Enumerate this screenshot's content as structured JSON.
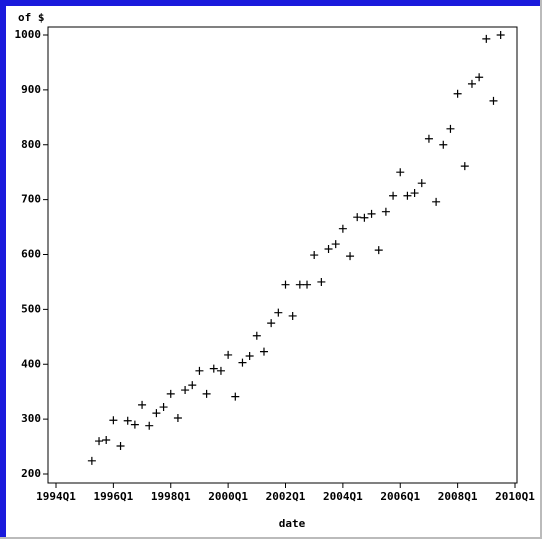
{
  "chart_data": {
    "type": "scatter",
    "ylabel": "of $",
    "xlabel": "date",
    "x": [
      1995.25,
      1995.5,
      1995.75,
      1996,
      1996.25,
      1996.5,
      1996.75,
      1997,
      1997.25,
      1997.5,
      1997.75,
      1998,
      1998.25,
      1998.5,
      1998.75,
      1999,
      1999.25,
      1999.5,
      1999.75,
      2000,
      2000.25,
      2000.5,
      2000.75,
      2001,
      2001.25,
      2001.5,
      2001.75,
      2002,
      2002.25,
      2002.5,
      2002.75,
      2003,
      2003.25,
      2003.5,
      2003.75,
      2004,
      2004.25,
      2004.5,
      2004.75,
      2005,
      2005.25,
      2005.5,
      2005.75,
      2006,
      2006.25,
      2006.5,
      2006.75,
      2007,
      2007.25,
      2007.5,
      2007.75,
      2008,
      2008.25,
      2008.5,
      2008.75,
      2009,
      2009.25,
      2009.5
    ],
    "values": [
      224,
      260,
      262,
      298,
      251,
      297,
      290,
      326,
      288,
      311,
      322,
      346,
      302,
      353,
      362,
      388,
      346,
      392,
      388,
      417,
      341,
      403,
      415,
      452,
      423,
      475,
      494,
      545,
      488,
      545,
      545,
      599,
      550,
      610,
      619,
      647,
      597,
      668,
      667,
      674,
      608,
      678,
      707,
      750,
      707,
      712,
      730,
      811,
      696,
      800,
      829,
      893,
      761,
      911,
      923,
      993,
      880,
      1000
    ],
    "color": "#000000",
    "xlim": [
      1994,
      2010
    ],
    "xticks": [
      {
        "value": 1994,
        "label": "1994Q1"
      },
      {
        "value": 1996,
        "label": "1996Q1"
      },
      {
        "value": 1998,
        "label": "1998Q1"
      },
      {
        "value": 2000,
        "label": "2000Q1"
      },
      {
        "value": 2002,
        "label": "2002Q1"
      },
      {
        "value": 2004,
        "label": "2004Q1"
      },
      {
        "value": 2006,
        "label": "2006Q1"
      },
      {
        "value": 2008,
        "label": "2008Q1"
      },
      {
        "value": 2010,
        "label": "2010Q1"
      }
    ],
    "ylim": [
      200,
      1000
    ],
    "yticks": [
      200,
      300,
      400,
      500,
      600,
      700,
      800,
      900,
      1000
    ],
    "grid": false
  }
}
